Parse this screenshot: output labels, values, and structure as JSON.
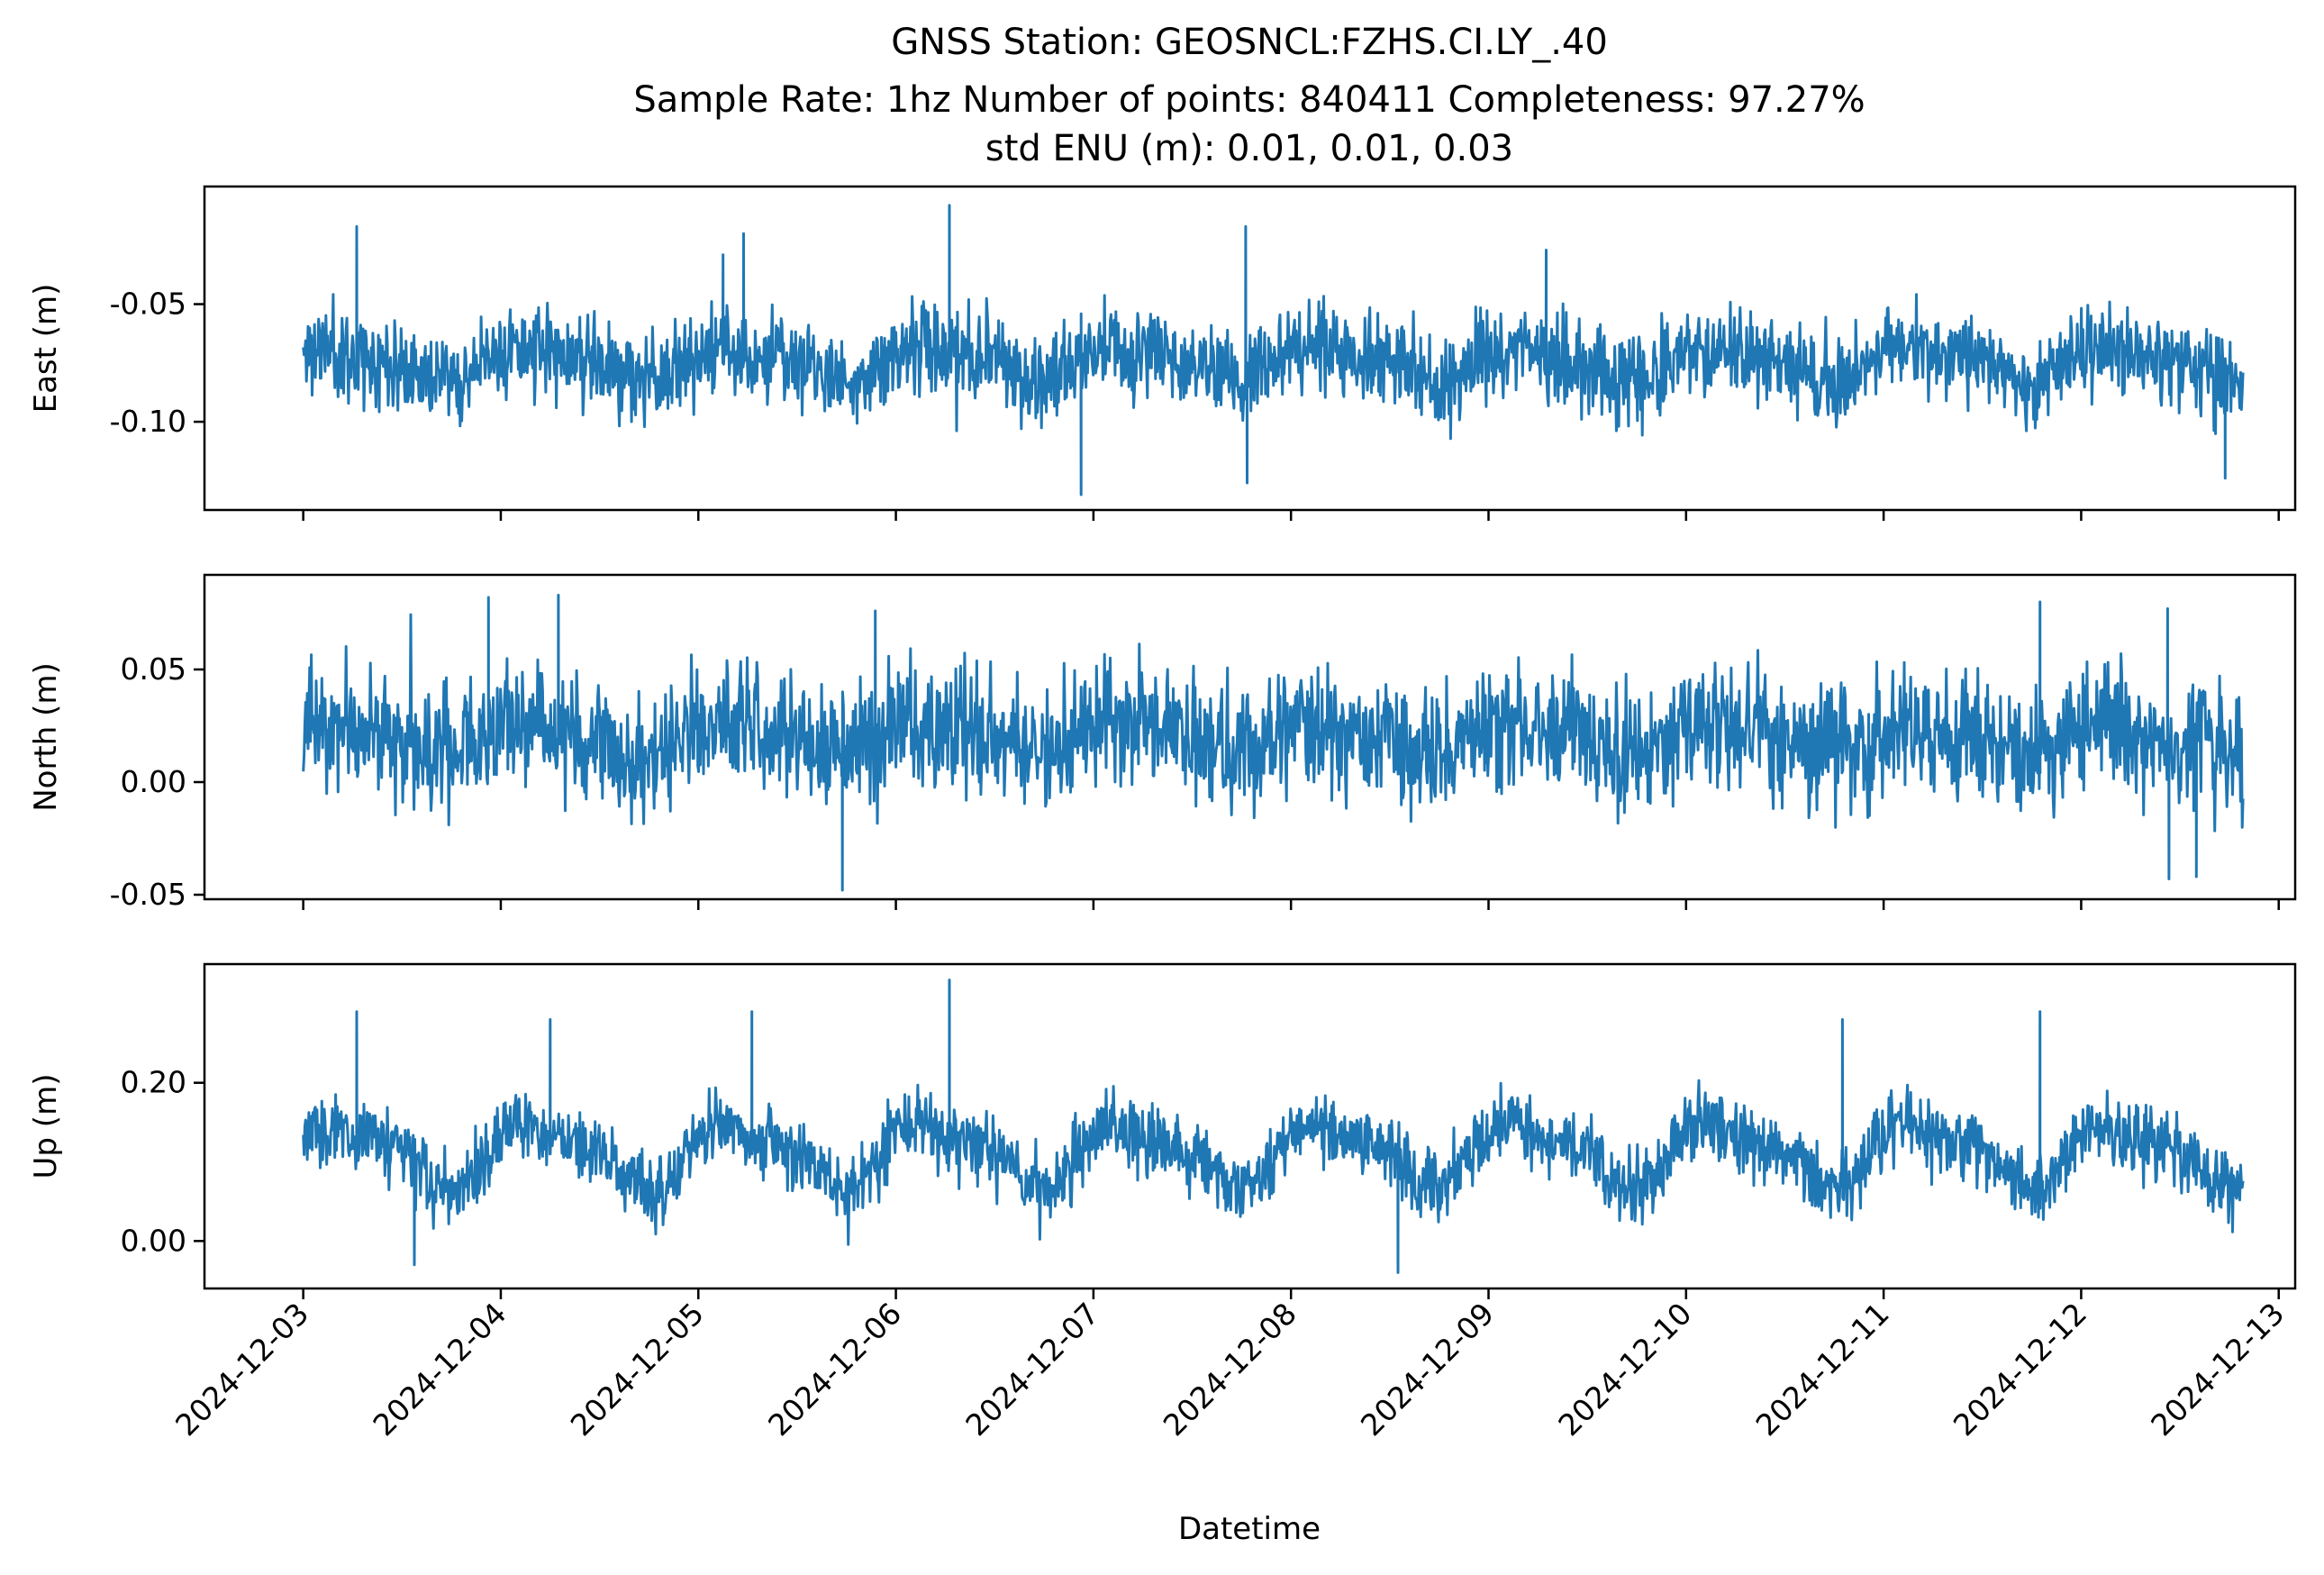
{
  "figure": {
    "title_lines": [
      "GNSS Station: GEOSNCL:FZHS.CI.LY_.40",
      "Sample Rate: 1hz   Number of points: 840411    Completeness:  97.27%",
      "std ENU (m):  0.01, 0.01, 0.03"
    ],
    "xlabel": "Datetime"
  },
  "chart_data": {
    "type": "line",
    "title": "GNSS Station: GEOSNCL:FZHS.CI.LY_.40",
    "subtitle": "Sample Rate: 1hz   Number of points: 840411    Completeness:  97.27%  |  std ENU (m):  0.01, 0.01, 0.03",
    "x_type": "datetime",
    "x_range": [
      "2024-12-02T12:00",
      "2024-12-13T02:00"
    ],
    "data_range": [
      "2024-12-03T00:00",
      "2024-12-12T19:40"
    ],
    "x_ticks": [
      "2024-12-03",
      "2024-12-04",
      "2024-12-05",
      "2024-12-06",
      "2024-12-07",
      "2024-12-08",
      "2024-12-09",
      "2024-12-10",
      "2024-12-11",
      "2024-12-12",
      "2024-12-13"
    ],
    "xlabel": "Datetime",
    "line_color": "#1f77b4",
    "grid": false,
    "shared_x": true,
    "panels": [
      {
        "ylabel": "East (m)",
        "ylim": [
          -0.1375,
          0.0
        ],
        "yticks": [
          -0.05,
          -0.1
        ],
        "ytick_labels": [
          "-0.05",
          "-0.10"
        ],
        "baseline": -0.075,
        "band": 0.021,
        "wave_amp": 0.006,
        "seed": 11,
        "extremes": [
          {
            "t": "2024-12-03T06:30",
            "v": -0.017
          },
          {
            "t": "2024-12-05T03:00",
            "v": -0.029
          },
          {
            "t": "2024-12-05T05:30",
            "v": -0.02
          },
          {
            "t": "2024-12-06T06:30",
            "v": -0.008
          },
          {
            "t": "2024-12-06T22:30",
            "v": -0.131
          },
          {
            "t": "2024-12-07T18:30",
            "v": -0.017
          },
          {
            "t": "2024-12-07T18:40",
            "v": -0.126
          },
          {
            "t": "2024-12-09T07:00",
            "v": -0.027
          },
          {
            "t": "2024-12-12T17:30",
            "v": -0.124
          }
        ]
      },
      {
        "ylabel": "North (m)",
        "ylim": [
          -0.052,
          0.092
        ],
        "yticks": [
          0.05,
          0.0,
          -0.05
        ],
        "ytick_labels": [
          "0.05",
          "0.00",
          "-0.05"
        ],
        "baseline": 0.02,
        "band": 0.03,
        "wave_amp": 0.006,
        "seed": 23,
        "extremes": [
          {
            "t": "2024-12-03T22:30",
            "v": 0.082
          },
          {
            "t": "2024-12-04T07:00",
            "v": 0.083
          },
          {
            "t": "2024-12-05T17:30",
            "v": -0.048
          },
          {
            "t": "2024-12-05T21:30",
            "v": 0.076
          },
          {
            "t": "2024-12-11T19:00",
            "v": 0.08
          },
          {
            "t": "2024-12-12T10:30",
            "v": 0.077
          },
          {
            "t": "2024-12-12T10:40",
            "v": -0.043
          },
          {
            "t": "2024-12-12T14:00",
            "v": -0.042
          }
        ]
      },
      {
        "ylabel": "Up (m)",
        "ylim": [
          -0.06,
          0.35
        ],
        "yticks": [
          0.2,
          0.0
        ],
        "ytick_labels": [
          "0.20",
          "0.00"
        ],
        "baseline": 0.11,
        "band": 0.05,
        "wave_amp": 0.035,
        "seed": 37,
        "extremes": [
          {
            "t": "2024-12-03T06:30",
            "v": 0.29
          },
          {
            "t": "2024-12-03T13:30",
            "v": -0.03
          },
          {
            "t": "2024-12-04T06:00",
            "v": 0.28
          },
          {
            "t": "2024-12-05T06:30",
            "v": 0.29
          },
          {
            "t": "2024-12-06T06:30",
            "v": 0.33
          },
          {
            "t": "2024-12-08T13:00",
            "v": -0.04
          },
          {
            "t": "2024-12-10T19:00",
            "v": 0.28
          },
          {
            "t": "2024-12-11T19:00",
            "v": 0.29
          }
        ]
      }
    ]
  }
}
